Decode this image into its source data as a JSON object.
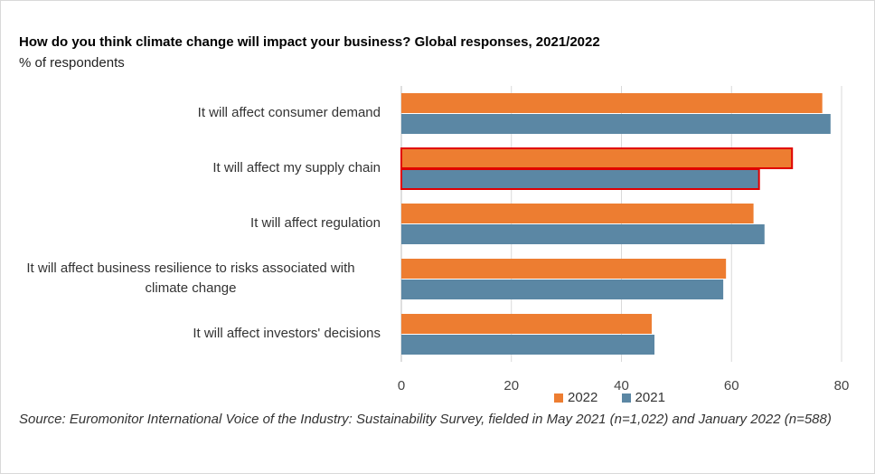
{
  "title": "How do you think climate change will impact your business? Global responses, 2021/2022",
  "subtitle": "% of respondents",
  "source": "Source: Euromonitor International Voice of the Industry: Sustainability Survey, fielded in May 2021 (n=1,022) and January 2022 (n=588)",
  "colors": {
    "s2022": "#ED7D31",
    "s2021": "#5B87A4",
    "highlight": "#E00000"
  },
  "chart_data": {
    "type": "bar",
    "orientation": "horizontal",
    "categories": [
      "It will affect consumer demand",
      "It will affect my supply chain",
      "It will affect regulation",
      "It will affect business resilience to risks associated with climate change",
      "It will affect investors' decisions"
    ],
    "category_lines": [
      [
        "It will affect consumer demand"
      ],
      [
        "It will affect my supply chain"
      ],
      [
        "It will affect regulation"
      ],
      [
        "It will affect business resilience to risks associated with",
        "climate change"
      ],
      [
        "It will affect investors' decisions"
      ]
    ],
    "series": [
      {
        "name": "2022",
        "values": [
          76.5,
          71,
          64,
          59,
          45.5
        ]
      },
      {
        "name": "2021",
        "values": [
          78,
          65,
          66,
          58.5,
          46
        ]
      }
    ],
    "highlighted_category": "It will affect my supply chain",
    "xlim": [
      0,
      80
    ],
    "xticks": [
      "0",
      "20",
      "40",
      "60",
      "80"
    ],
    "grid": true,
    "legend_position": "bottom"
  }
}
